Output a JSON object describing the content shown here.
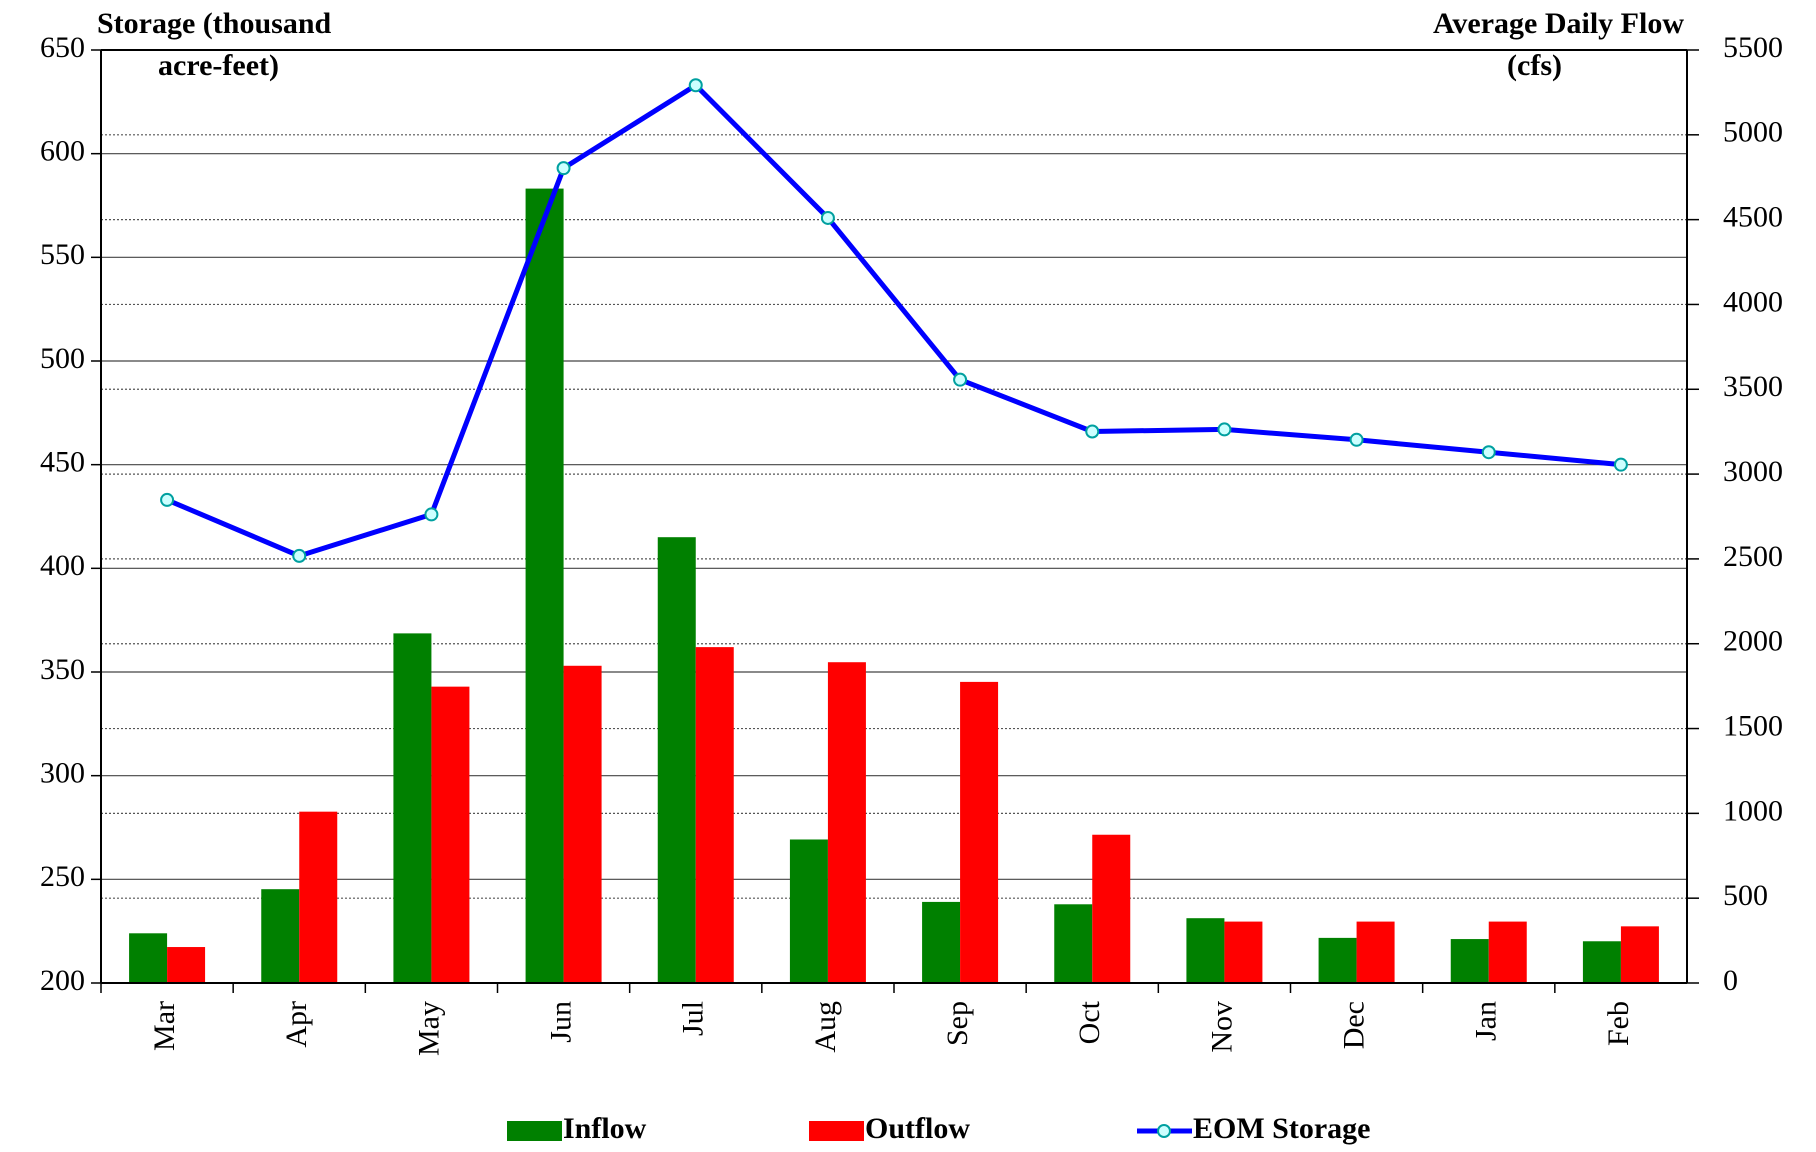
{
  "chart_data": {
    "type": "bar+line",
    "ylabel_lines": [
      "Storage (thousand",
      "acre-feet)"
    ],
    "y2label_lines": [
      "Average Daily Flow",
      "(cfs)"
    ],
    "categories": [
      "Mar",
      "Apr",
      "May",
      "Jun",
      "Jul",
      "Aug",
      "Sep",
      "Oct",
      "Nov",
      "Dec",
      "Jan",
      "Feb"
    ],
    "series": [
      {
        "name": "Inflow",
        "type": "bar",
        "axis": "y2",
        "color": "#008000",
        "values": [
          293,
          553,
          2061,
          4683,
          2628,
          846,
          478,
          464,
          382,
          266,
          259,
          246
        ]
      },
      {
        "name": "Outflow",
        "type": "bar",
        "axis": "y2",
        "color": "#ff0000",
        "values": [
          212,
          1010,
          1747,
          1870,
          1980,
          1891,
          1775,
          874,
          362,
          362,
          362,
          334
        ]
      },
      {
        "name": "EOM Storage",
        "type": "line",
        "axis": "y",
        "color": "#0000ff",
        "values": [
          433,
          406,
          426,
          593,
          633,
          569,
          491,
          466,
          467,
          462,
          456,
          450
        ]
      }
    ],
    "ylim": [
      200,
      650
    ],
    "yticks": [
      200,
      250,
      300,
      350,
      400,
      450,
      500,
      550,
      600,
      650
    ],
    "y2lim": [
      0,
      5500
    ],
    "y2ticks": [
      0,
      500,
      1000,
      1500,
      2000,
      2500,
      3000,
      3500,
      4000,
      4500,
      5000,
      5500
    ],
    "grid": true
  }
}
